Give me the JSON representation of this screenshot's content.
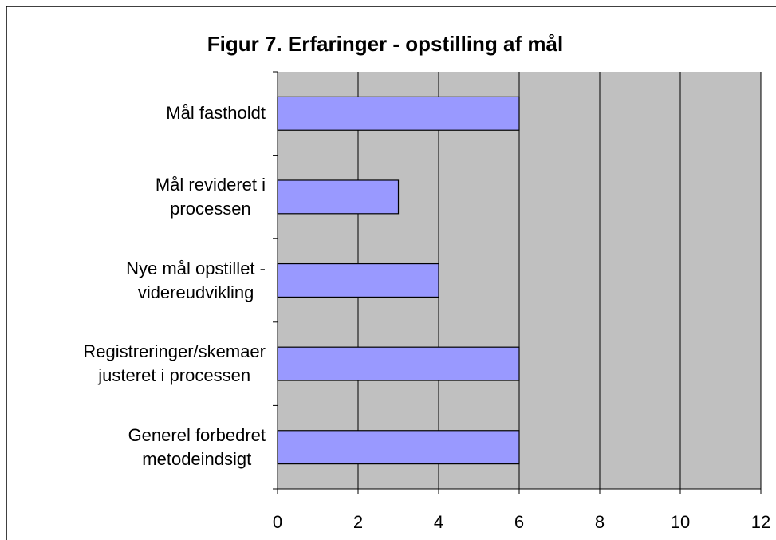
{
  "chart_data": {
    "type": "bar",
    "orientation": "horizontal",
    "title": "Figur 7. Erfaringer - opstilling af mål",
    "categories": [
      "Mål fastholdt",
      "Mål revideret i\nprocessen",
      "Nye mål opstillet -\nvidereudvikling",
      "Registreringer/skemaer\njusteret i processen",
      "Generel forbedret\nmetodeindsigt"
    ],
    "values": [
      6,
      3,
      4,
      6,
      6
    ],
    "color": "#9999ff",
    "xlim": [
      0,
      12
    ],
    "xticks": [
      0,
      2,
      4,
      6,
      8,
      10,
      12
    ],
    "grid": true
  }
}
